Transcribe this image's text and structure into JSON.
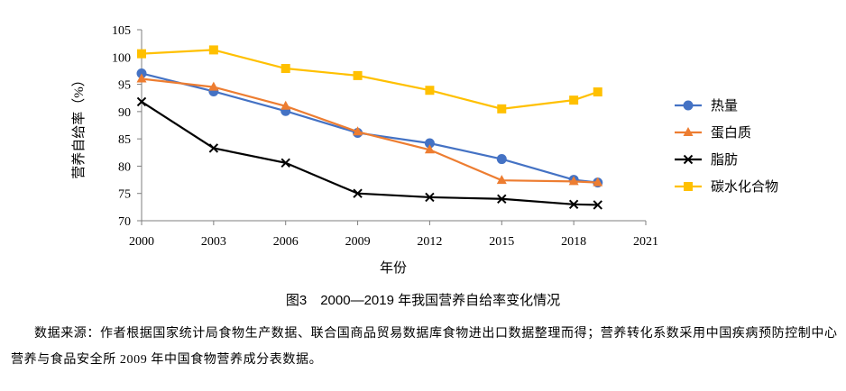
{
  "chart_data": {
    "type": "line",
    "xlabel": "年份",
    "ylabel": "营养自给率（%）",
    "xlim": [
      2000,
      2021
    ],
    "ylim": [
      70,
      105
    ],
    "xticks": [
      2000,
      2003,
      2006,
      2009,
      2012,
      2015,
      2018,
      2021
    ],
    "yticks": [
      70,
      75,
      80,
      85,
      90,
      95,
      100,
      105
    ],
    "grid": false,
    "legend": "right",
    "x": [
      2000,
      2003,
      2006,
      2009,
      2012,
      2015,
      2018,
      2019
    ],
    "series": [
      {
        "name": "热量",
        "color": "#4472C4",
        "marker": "circle",
        "values": [
          97.0,
          93.7,
          90.1,
          86.1,
          84.2,
          81.3,
          77.5,
          77.0
        ]
      },
      {
        "name": "蛋白质",
        "color": "#ED7D31",
        "marker": "triangle",
        "values": [
          96.0,
          94.5,
          91.0,
          86.3,
          83.0,
          77.4,
          77.2,
          77.0
        ]
      },
      {
        "name": "脂肪",
        "color": "#000000",
        "marker": "x",
        "values": [
          91.8,
          83.3,
          80.6,
          75.0,
          74.3,
          74.0,
          73.0,
          72.9
        ]
      },
      {
        "name": "碳水化合物",
        "color": "#FFC000",
        "marker": "square",
        "values": [
          100.6,
          101.3,
          97.9,
          96.6,
          93.9,
          90.5,
          92.1,
          93.6
        ]
      }
    ]
  },
  "caption": "图3　2000—2019 年我国营养自给率变化情况",
  "note": "数据来源：作者根据国家统计局食物生产数据、联合国商品贸易数据库食物进出口数据整理而得；营养转化系数采用中国疾病预防控制中心营养与食品安全所 2009 年中国食物营养成分表数据。"
}
